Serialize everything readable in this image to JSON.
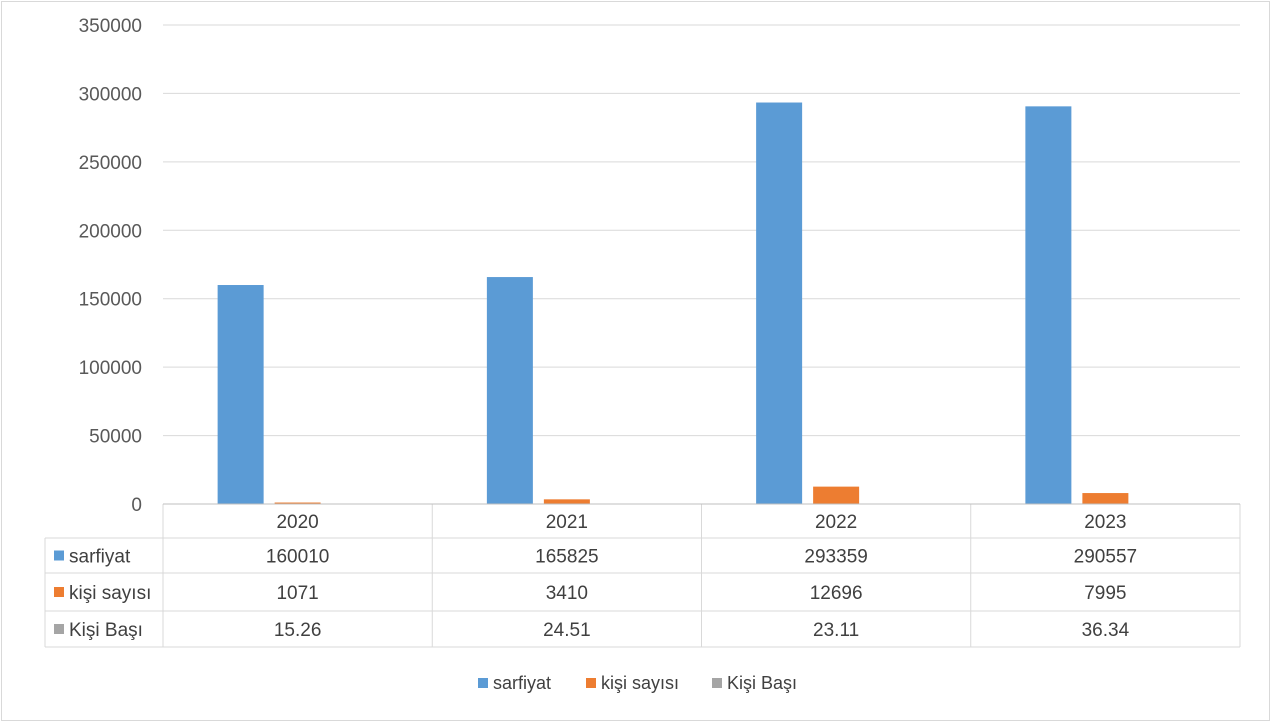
{
  "chart_data": {
    "type": "bar",
    "categories": [
      "2020",
      "2021",
      "2022",
      "2023"
    ],
    "ylim": [
      0,
      350000
    ],
    "y_ticks": [
      0,
      50000,
      100000,
      150000,
      200000,
      250000,
      300000,
      350000
    ],
    "grid": true,
    "legend_position": "bottom",
    "data_table": true,
    "series": [
      {
        "name": "sarfiyat",
        "color": "#5b9bd5",
        "values": [
          160010,
          165825,
          293359,
          290557
        ],
        "labels": [
          "160010",
          "165825",
          "293359",
          "290557"
        ]
      },
      {
        "name": "kişi sayısı",
        "color": "#ed7d31",
        "values": [
          1071,
          3410,
          12696,
          7995
        ],
        "labels": [
          "1071",
          "3410",
          "12696",
          "7995"
        ]
      },
      {
        "name": "Kişi Başı",
        "color": "#a5a5a5",
        "values": [
          15.26,
          24.51,
          23.11,
          36.34
        ],
        "labels": [
          "15.26",
          "24.51",
          "23.11",
          "36.34"
        ]
      }
    ]
  }
}
